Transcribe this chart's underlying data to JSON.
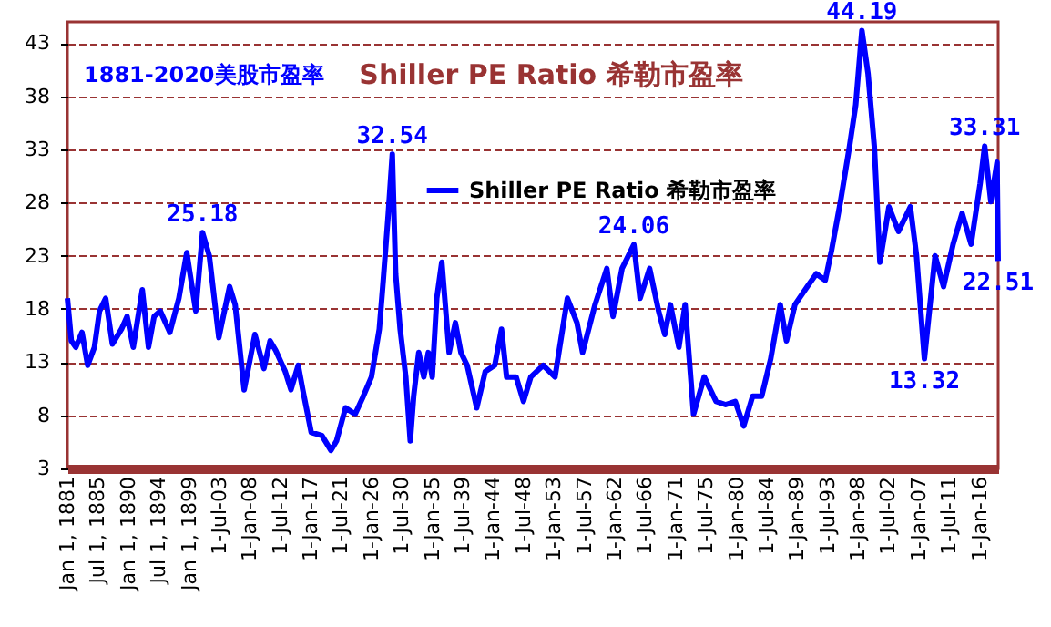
{
  "chart_data": {
    "type": "line",
    "title": "Shiller PE Ratio 希勒市盈率",
    "subtitle": "1881-2020美股市盈率",
    "x": [
      "1881-01",
      "1881-08",
      "1882-04",
      "1883-03",
      "1884-01",
      "1885-01",
      "1885-10",
      "1886-09",
      "1887-09",
      "1889-01",
      "1889-11",
      "1890-10",
      "1892-02",
      "1893-01",
      "1893-11",
      "1894-10",
      "1896-03",
      "1897-07",
      "1898-09",
      "1900-01",
      "1901-01",
      "1902-01",
      "1903-06",
      "1905-01",
      "1905-11",
      "1907-03",
      "1908-10",
      "1910-02",
      "1911-01",
      "1911-11",
      "1913-04",
      "1914-02",
      "1915-03",
      "1915-11",
      "1917-02",
      "1918-09",
      "1920-01",
      "1920-11",
      "1922-03",
      "1923-08",
      "1924-09",
      "1926-01",
      "1927-03",
      "1927-10",
      "1928-07",
      "1929-02",
      "1929-08",
      "1930-04",
      "1931-02",
      "1931-10",
      "1932-04",
      "1933-01",
      "1933-10",
      "1934-06",
      "1935-01",
      "1935-09",
      "1936-06",
      "1937-07",
      "1938-06",
      "1939-04",
      "1940-03",
      "1941-08",
      "1942-11",
      "1944-04",
      "1945-04",
      "1946-01",
      "1947-06",
      "1948-07",
      "1949-08",
      "1951-06",
      "1953-03",
      "1955-01",
      "1956-06",
      "1957-04",
      "1959-02",
      "1960-11",
      "1961-10",
      "1963-02",
      "1964-11",
      "1965-10",
      "1967-03",
      "1968-07",
      "1969-06",
      "1970-04",
      "1971-07",
      "1972-06",
      "1973-09",
      "1975-04",
      "1977-01",
      "1978-06",
      "1979-11",
      "1981-02",
      "1982-06",
      "1983-10",
      "1985-02",
      "1986-07",
      "1987-06",
      "1988-09",
      "1990-07",
      "1991-11",
      "1993-03",
      "1994-02",
      "1995-06",
      "1996-10",
      "1997-09",
      "1998-08",
      "1999-07",
      "2000-06",
      "2001-04",
      "2002-08",
      "2004-01",
      "2005-10",
      "2006-09",
      "2007-11",
      "2009-06",
      "2010-09",
      "2012-02",
      "2013-06",
      "2014-10",
      "2016-02",
      "2016-10",
      "2017-09",
      "2018-08",
      "2018-10"
    ],
    "series": [
      {
        "name": "Shiller PE Ratio 希勒市盈率",
        "color": "#0000ff",
        "values": [
          19.0,
          15.0,
          14.4,
          15.8,
          12.7,
          14.4,
          17.8,
          19.0,
          14.7,
          16.1,
          17.3,
          14.4,
          19.8,
          14.4,
          17.3,
          17.8,
          15.8,
          19.0,
          23.3,
          17.8,
          25.18,
          23.0,
          15.3,
          20.1,
          18.4,
          10.4,
          15.6,
          12.4,
          15.0,
          14.1,
          12.1,
          10.4,
          12.7,
          10.4,
          6.4,
          6.1,
          4.7,
          5.6,
          8.7,
          8.1,
          9.6,
          11.6,
          16.1,
          20.7,
          27.0,
          32.54,
          21.3,
          16.1,
          11.6,
          5.6,
          9.8,
          13.9,
          11.6,
          13.9,
          11.6,
          19.0,
          22.4,
          13.9,
          16.7,
          13.9,
          12.7,
          8.7,
          12.1,
          12.7,
          16.1,
          11.6,
          11.6,
          9.3,
          11.6,
          12.7,
          11.6,
          19.0,
          16.7,
          13.9,
          18.4,
          21.8,
          17.3,
          21.8,
          24.06,
          19.0,
          21.8,
          17.8,
          15.6,
          18.4,
          14.4,
          18.4,
          8.1,
          11.6,
          9.3,
          9.0,
          9.3,
          7.0,
          9.8,
          9.8,
          13.3,
          18.4,
          15.0,
          18.4,
          20.1,
          21.3,
          20.7,
          23.5,
          28.1,
          33.3,
          37.2,
          44.19,
          40.1,
          33.3,
          22.4,
          27.6,
          25.3,
          27.6,
          23.0,
          13.32,
          23.0,
          20.1,
          24.1,
          27.0,
          24.1,
          29.8,
          33.31,
          28.1,
          31.8,
          22.51
        ]
      }
    ],
    "xlim": [
      "1881-01",
      "2018-10"
    ],
    "xticks": [
      {
        "value": "1881-01-01",
        "label": "Jan 1, 1881"
      },
      {
        "value": "1885-07-01",
        "label": "Jul 1, 1885"
      },
      {
        "value": "1890-01-01",
        "label": "Jan 1, 1890"
      },
      {
        "value": "1894-07-01",
        "label": "Jul 1, 1894"
      },
      {
        "value": "1899-01-01",
        "label": "Jan 1, 1899"
      },
      {
        "value": "1903-07-01",
        "label": "1-Jul-03"
      },
      {
        "value": "1908-01-01",
        "label": "1-Jan-08"
      },
      {
        "value": "1912-07-01",
        "label": "1-Jul-12"
      },
      {
        "value": "1917-01-01",
        "label": "1-Jan-17"
      },
      {
        "value": "1921-07-01",
        "label": "1-Jul-21"
      },
      {
        "value": "1926-01-01",
        "label": "1-Jan-26"
      },
      {
        "value": "1930-07-01",
        "label": "1-Jul-30"
      },
      {
        "value": "1935-01-01",
        "label": "1-Jan-35"
      },
      {
        "value": "1939-07-01",
        "label": "1-Jul-39"
      },
      {
        "value": "1944-01-01",
        "label": "1-Jan-44"
      },
      {
        "value": "1948-07-01",
        "label": "1-Jul-48"
      },
      {
        "value": "1953-01-01",
        "label": "1-Jan-53"
      },
      {
        "value": "1957-07-01",
        "label": "1-Jul-57"
      },
      {
        "value": "1962-01-01",
        "label": "1-Jan-62"
      },
      {
        "value": "1966-07-01",
        "label": "1-Jul-66"
      },
      {
        "value": "1971-01-01",
        "label": "1-Jan-71"
      },
      {
        "value": "1975-07-01",
        "label": "1-Jul-75"
      },
      {
        "value": "1980-01-01",
        "label": "1-Jan-80"
      },
      {
        "value": "1984-07-01",
        "label": "1-Jul-84"
      },
      {
        "value": "1989-01-01",
        "label": "1-Jan-89"
      },
      {
        "value": "1993-07-01",
        "label": "1-Jul-93"
      },
      {
        "value": "1998-01-01",
        "label": "1-Jan-98"
      },
      {
        "value": "2002-07-01",
        "label": "1-Jul-02"
      },
      {
        "value": "2007-01-01",
        "label": "1-Jan-07"
      },
      {
        "value": "2011-07-01",
        "label": "1-Jul-11"
      },
      {
        "value": "2016-01-01",
        "label": "1-Jan-16"
      }
    ],
    "ylim": [
      3,
      45
    ],
    "yticks": [
      3,
      8,
      13,
      18,
      23,
      28,
      33,
      38,
      43
    ],
    "grid": "y",
    "legend": "top",
    "marker": "none",
    "line_style": "solid",
    "annotations": [
      {
        "text": "25.18",
        "x": "1901-01",
        "y": 25.18
      },
      {
        "text": "32.54",
        "x": "1929-02",
        "y": 32.54
      },
      {
        "text": "24.06",
        "x": "1964-11",
        "y": 24.06
      },
      {
        "text": "44.19",
        "x": "1998-08",
        "y": 44.19
      },
      {
        "text": "13.32",
        "x": "2007-11",
        "y": 13.32
      },
      {
        "text": "33.31",
        "x": "2016-10",
        "y": 33.31
      },
      {
        "text": "22.51",
        "x": "2018-10",
        "y": 22.51
      }
    ]
  }
}
